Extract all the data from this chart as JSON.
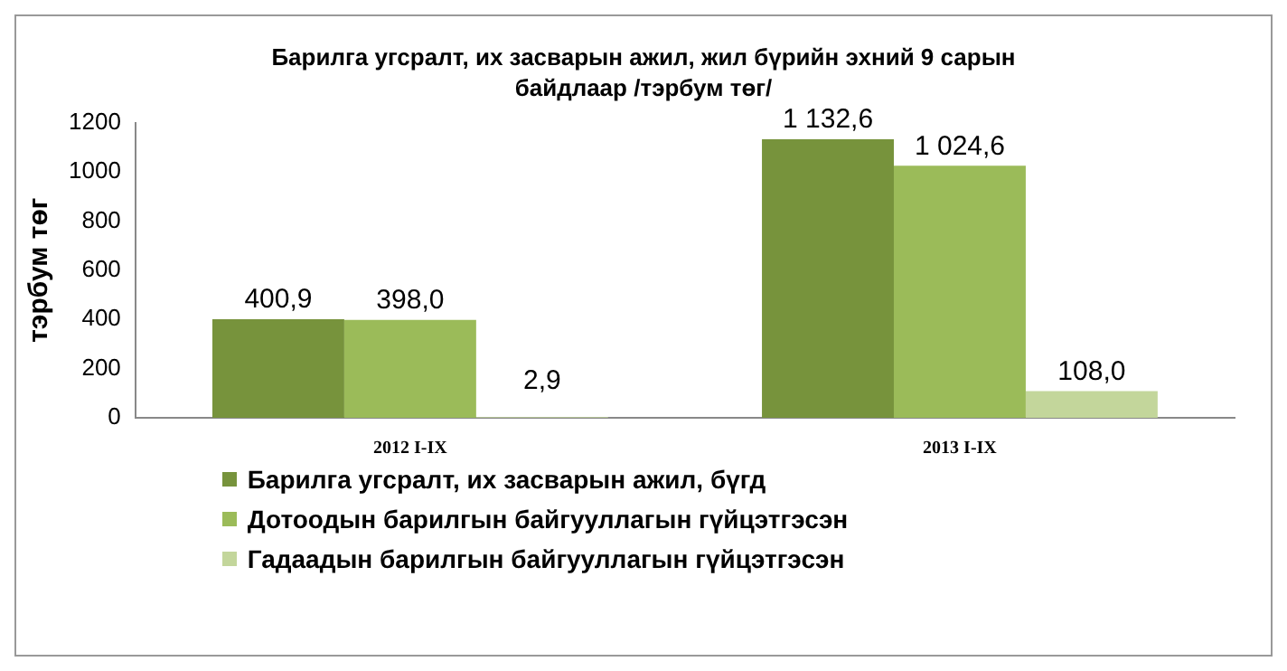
{
  "chart_data": {
    "type": "bar",
    "title": "Барилга угсралт, их засварын ажил, жил бүрийн эхний 9 сарын байдлаар /тэрбум төг/",
    "ylabel": "тэрбум төг",
    "categories": [
      "2012 I-IX",
      "2013 I-IX"
    ],
    "series": [
      {
        "name": "Барилга угсралт, их засварын ажил, бүгд",
        "color": "#77933c",
        "values": [
          400.9,
          1132.6
        ],
        "value_labels": [
          "400,9",
          "1 132,6"
        ]
      },
      {
        "name": "Дотоодын барилгын байгууллагын гүйцэтгэсэн",
        "color": "#9bbb59",
        "values": [
          398.0,
          1024.6
        ],
        "value_labels": [
          "398,0",
          "1 024,6"
        ]
      },
      {
        "name": "Гадаадын барилгын байгууллагын гүйцэтгэсэн",
        "color": "#c3d69b",
        "values": [
          2.9,
          108.0
        ],
        "value_labels": [
          "2,9",
          "108,0"
        ]
      }
    ],
    "ylim": [
      0,
      1200
    ],
    "yticks": [
      0,
      200,
      400,
      600,
      800,
      1000,
      1200
    ],
    "legend": "bottom"
  }
}
